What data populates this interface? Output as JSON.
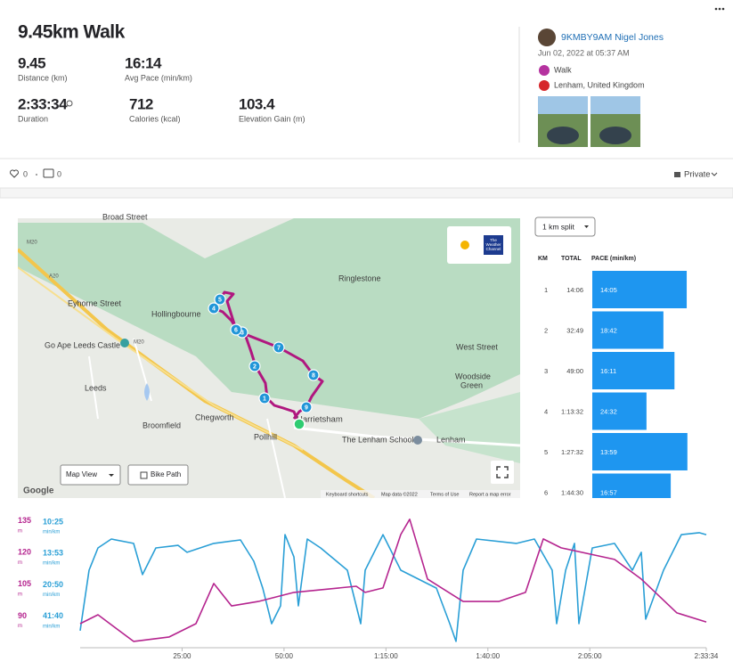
{
  "header": {
    "title": "9.45km Walk"
  },
  "stats": [
    {
      "value": "9.45",
      "label": "Distance (km)"
    },
    {
      "value": "16:14",
      "label": "Avg Pace (min/km)"
    },
    {
      "value": "2:33:34",
      "label": "Duration"
    },
    {
      "value": "712",
      "label": "Calories (kcal)"
    },
    {
      "value": "103.4",
      "label": "Elevation Gain (m)"
    }
  ],
  "athlete": {
    "name": "9KMBY9AM Nigel Jones",
    "date": "Jun 02, 2022 at 05:37 AM",
    "activity": "Walk",
    "location": "Lenham, United Kingdom"
  },
  "social": {
    "kudos": "0",
    "comments": "0",
    "privacy": "Private"
  },
  "map": {
    "labels": [
      "Broad Street",
      "Ringlestone",
      "Eyhorne Street",
      "Hollingbourne",
      "Go Ape Leeds Castle",
      "West Street",
      "Woodside",
      "Green",
      "Leeds",
      "Chegworth",
      "Broomfield",
      "Harrietsham",
      "Pollhill",
      "The Lenham School",
      "Lenham",
      "M20",
      "M20",
      "A20"
    ],
    "markers": [
      "1",
      "2",
      "3",
      "4",
      "5",
      "6",
      "7",
      "8",
      "9"
    ],
    "controls": {
      "view": "Map View",
      "bike": "Bike Path"
    },
    "weather": [
      "The",
      "Weather",
      "Channel"
    ],
    "footer": [
      "Keyboard shortcuts",
      "Map data ©2022",
      "Terms of Use",
      "Report a map error"
    ],
    "logo": "Google"
  },
  "splits": {
    "selector": "1 km split",
    "columns": [
      "KM",
      "TOTAL",
      "PACE (min/km)"
    ],
    "rows": [
      [
        "1",
        "14:06",
        "14:05"
      ],
      [
        "2",
        "32:49",
        "18:42"
      ],
      [
        "3",
        "49:00",
        "16:11"
      ],
      [
        "4",
        "1:13:32",
        "24:32"
      ],
      [
        "5",
        "1:27:32",
        "13:59"
      ],
      [
        "6",
        "1:44:30",
        "16:57"
      ]
    ],
    "color": "#1e96f0"
  },
  "chart_data": {
    "type": "line",
    "xlim": [
      0,
      9214
    ],
    "xticks": [
      {
        "value": 1500,
        "label": "25:00"
      },
      {
        "value": 3000,
        "label": "50:00"
      },
      {
        "value": 4500,
        "label": "1:15:00"
      },
      {
        "value": 6000,
        "label": "1:40:00"
      },
      {
        "value": 7500,
        "label": "2:05:00"
      },
      {
        "value": 9214,
        "label": "2:33:34"
      }
    ],
    "ylim": [
      75,
      137
    ],
    "yticks": [
      90,
      105,
      120,
      135
    ],
    "y_unit": "m",
    "y2lim": [
      0,
      6
    ],
    "y2ticks": [
      {
        "value": 1.44,
        "label": "41:40"
      },
      {
        "value": 2.88,
        "label": "20:50"
      },
      {
        "value": 4.32,
        "label": "13:53"
      },
      {
        "value": 5.76,
        "label": "10:25"
      }
    ],
    "y2_unit": "min/km",
    "series": [
      {
        "color": "#b5258f",
        "x": [
          0,
          262,
          786,
          1311,
          1704,
          1966,
          2228,
          2621,
          3146,
          4063,
          4194,
          4456,
          4718,
          4849,
          5111,
          5636,
          6160,
          6553,
          6815,
          7077,
          7864,
          8257,
          8781,
          9214
        ],
        "values": [
          86.4,
          90.6,
          78.0,
          80.1,
          86.4,
          105.4,
          94.8,
          96.9,
          101.2,
          104.1,
          101.2,
          103.3,
          128.6,
          135.8,
          107.5,
          96.9,
          96.9,
          101.2,
          126.5,
          122.3,
          116.8,
          107.5,
          91.5,
          87.2
        ]
      },
      {
        "color": "#2a9fd6",
        "axis": "y2",
        "x": [
          0,
          131,
          262,
          459,
          786,
          918,
          1114,
          1442,
          1573,
          1966,
          2359,
          2556,
          2687,
          2818,
          2949,
          3015,
          3146,
          3211,
          3342,
          3539,
          3932,
          4129,
          4194,
          4456,
          4718,
          5243,
          5439,
          5531,
          5636,
          5833,
          6422,
          6685,
          6947,
          7012,
          7144,
          7274,
          7340,
          7536,
          7864,
          8126,
          8257,
          8323,
          8585,
          8847,
          9109,
          9214
        ],
        "values": [
          0.78,
          3.55,
          4.57,
          4.98,
          4.78,
          3.35,
          4.57,
          4.69,
          4.37,
          4.78,
          4.94,
          3.96,
          2.73,
          1.1,
          1.92,
          5.18,
          4.16,
          1.92,
          4.98,
          4.57,
          3.55,
          1.1,
          3.55,
          5.18,
          3.55,
          2.73,
          1.1,
          0.29,
          3.55,
          4.98,
          4.78,
          4.98,
          3.55,
          1.1,
          3.55,
          4.78,
          1.1,
          4.57,
          4.78,
          3.55,
          4.37,
          1.31,
          3.55,
          5.18,
          5.27,
          5.18
        ]
      }
    ]
  }
}
